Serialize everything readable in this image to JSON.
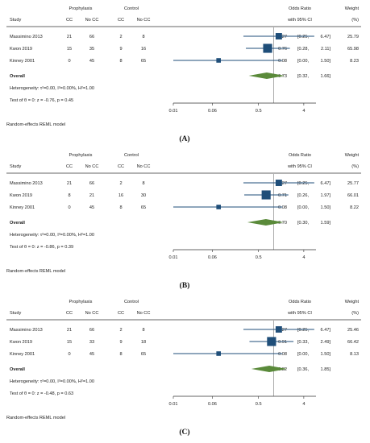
{
  "column_headers": {
    "study": "Study",
    "prophylaxis": "Prophylaxis",
    "control": "Control",
    "cc": "CC",
    "no_cc": "No CC",
    "or_title": "Odds Ratio",
    "or_ci": "with 95% CI",
    "weight": "Weight",
    "weight_unit": "(%)"
  },
  "footer_text": "Random-effects REML model",
  "colors": {
    "square": "#1f4e79",
    "diamond": "#5a8a3a",
    "line": "#1f4e79",
    "axis": "#333333"
  },
  "chart_data": [
    {
      "type": "forest",
      "panel_label": "(A)",
      "x_scale": "log",
      "xlim": [
        0.01,
        7
      ],
      "ticks": [
        "0.01",
        "0.06",
        "0.5",
        "4"
      ],
      "tick_values": [
        0.01,
        0.06,
        0.5,
        4
      ],
      "reference_line": 1,
      "studies": [
        {
          "study": "Massimino 2013",
          "p_cc": "21",
          "p_nocc": "66",
          "c_cc": "2",
          "c_nocc": "8",
          "or": 1.27,
          "lo": 0.25,
          "hi": 6.47,
          "or_text": "1.27",
          "ci_lo_text": "[0.25,",
          "ci_hi_text": "6.47]",
          "weight": "25.79"
        },
        {
          "study": "Kwon 2019",
          "p_cc": "15",
          "p_nocc": "35",
          "c_cc": "9",
          "c_nocc": "16",
          "or": 0.76,
          "lo": 0.28,
          "hi": 2.11,
          "or_text": "0.76",
          "ci_lo_text": "[0.28,",
          "ci_hi_text": "2.11]",
          "weight": "65.98"
        },
        {
          "study": "Kinney 2001",
          "p_cc": "0",
          "p_nocc": "45",
          "c_cc": "8",
          "c_nocc": "65",
          "or": 0.08,
          "lo": 0.0,
          "hi": 1.5,
          "or_text": "0.08",
          "ci_lo_text": "[0.00,",
          "ci_hi_text": "1.50]",
          "weight": "8.23"
        }
      ],
      "overall": {
        "label": "Overall",
        "or": 0.73,
        "lo": 0.32,
        "hi": 1.66,
        "or_text": "0.73",
        "ci_lo_text": "[0.32,",
        "ci_hi_text": "1.66]"
      },
      "heterogeneity": "Heterogeneity: τ²=0.00, I²=0.00%, H²=1.00",
      "test": "Test of θ = 0: z = -0.76, p = 0.45"
    },
    {
      "type": "forest",
      "panel_label": "(B)",
      "x_scale": "log",
      "xlim": [
        0.01,
        7
      ],
      "ticks": [
        "0.01",
        "0.06",
        "0.5",
        "4"
      ],
      "tick_values": [
        0.01,
        0.06,
        0.5,
        4
      ],
      "reference_line": 1,
      "studies": [
        {
          "study": "Massimino 2013",
          "p_cc": "21",
          "p_nocc": "66",
          "c_cc": "2",
          "c_nocc": "8",
          "or": 1.27,
          "lo": 0.25,
          "hi": 6.47,
          "or_text": "1.27",
          "ci_lo_text": "[0.25,",
          "ci_hi_text": "6.47]",
          "weight": "25.77"
        },
        {
          "study": "Kwon 2019",
          "p_cc": "8",
          "p_nocc": "21",
          "c_cc": "16",
          "c_nocc": "30",
          "or": 0.71,
          "lo": 0.26,
          "hi": 1.97,
          "or_text": "0.71",
          "ci_lo_text": "[0.26,",
          "ci_hi_text": "1.97]",
          "weight": "66.01"
        },
        {
          "study": "Kinney 2001",
          "p_cc": "0",
          "p_nocc": "45",
          "c_cc": "8",
          "c_nocc": "65",
          "or": 0.08,
          "lo": 0.0,
          "hi": 1.5,
          "or_text": "0.08",
          "ci_lo_text": "[0.00,",
          "ci_hi_text": "1.50]",
          "weight": "8.22"
        }
      ],
      "overall": {
        "label": "Overall",
        "or": 0.7,
        "lo": 0.3,
        "hi": 1.59,
        "or_text": "0.70",
        "ci_lo_text": "[0.30,",
        "ci_hi_text": "1.59]"
      },
      "heterogeneity": "Heterogeneity: τ²=0.00, I²=0.00%, H²=1.00",
      "test": "Test of θ = 0: z = -0.86, p = 0.39"
    },
    {
      "type": "forest",
      "panel_label": "(C)",
      "x_scale": "log",
      "xlim": [
        0.01,
        7
      ],
      "ticks": [
        "0.01",
        "0.06",
        "0.5",
        "4"
      ],
      "tick_values": [
        0.01,
        0.06,
        0.5,
        4
      ],
      "reference_line": 1,
      "studies": [
        {
          "study": "Massimino 2013",
          "p_cc": "21",
          "p_nocc": "66",
          "c_cc": "2",
          "c_nocc": "8",
          "or": 1.27,
          "lo": 0.25,
          "hi": 6.47,
          "or_text": "1.27",
          "ci_lo_text": "[0.25,",
          "ci_hi_text": "6.47]",
          "weight": "25.46"
        },
        {
          "study": "Kwon 2019",
          "p_cc": "15",
          "p_nocc": "33",
          "c_cc": "9",
          "c_nocc": "18",
          "or": 0.91,
          "lo": 0.33,
          "hi": 2.49,
          "or_text": "0.91",
          "ci_lo_text": "[0.33,",
          "ci_hi_text": "2.49]",
          "weight": "66.42"
        },
        {
          "study": "Kinney 2001",
          "p_cc": "0",
          "p_nocc": "45",
          "c_cc": "8",
          "c_nocc": "65",
          "or": 0.08,
          "lo": 0.0,
          "hi": 1.5,
          "or_text": "0.08",
          "ci_lo_text": "[0.00,",
          "ci_hi_text": "1.50]",
          "weight": "8.13"
        }
      ],
      "overall": {
        "label": "Overall",
        "or": 0.82,
        "lo": 0.36,
        "hi": 1.85,
        "or_text": "0.82",
        "ci_lo_text": "[0.36,",
        "ci_hi_text": "1.85]"
      },
      "heterogeneity": "Heterogeneity: τ²=0.00, I²=0.00%, H²=1.00",
      "test": "Test of θ = 0: z = -0.48, p = 0.63"
    }
  ]
}
